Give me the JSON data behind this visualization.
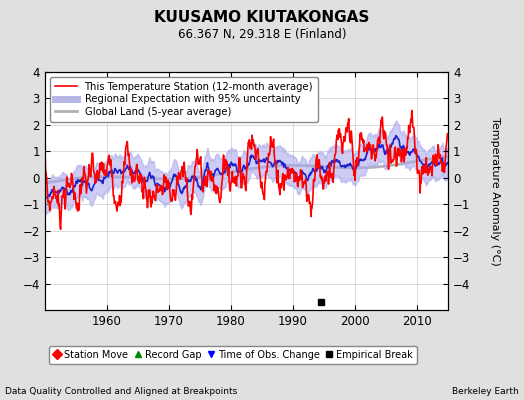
{
  "title": "KUUSAMO KIUTAKONGAS",
  "subtitle": "66.367 N, 29.318 E (Finland)",
  "ylabel": "Temperature Anomaly (°C)",
  "xlabel_bottom": "Data Quality Controlled and Aligned at Breakpoints",
  "xlabel_right": "Berkeley Earth",
  "ylim": [
    -5,
    4
  ],
  "xlim": [
    1950,
    2015
  ],
  "yticks": [
    -4,
    -3,
    -2,
    -1,
    0,
    1,
    2,
    3,
    4
  ],
  "xticks": [
    1960,
    1970,
    1980,
    1990,
    2000,
    2010
  ],
  "bg_color": "#e0e0e0",
  "plot_bg_color": "#ffffff",
  "legend_items": [
    {
      "label": "This Temperature Station (12-month average)",
      "color": "#ff0000",
      "lw": 1.2
    },
    {
      "label": "Regional Expectation with 95% uncertainty",
      "color": "#2222cc",
      "lw": 1.2
    },
    {
      "label": "Global Land (5-year average)",
      "color": "#b0b0b0",
      "lw": 2.0
    }
  ],
  "bottom_legend": [
    {
      "label": "Station Move",
      "color": "#ff0000",
      "marker": "D"
    },
    {
      "label": "Record Gap",
      "color": "#008800",
      "marker": "^"
    },
    {
      "label": "Time of Obs. Change",
      "color": "#0000ff",
      "marker": "v"
    },
    {
      "label": "Empirical Break",
      "color": "#000000",
      "marker": "s"
    }
  ],
  "empirical_break_x": 1994.5,
  "empirical_break_y": -4.7
}
